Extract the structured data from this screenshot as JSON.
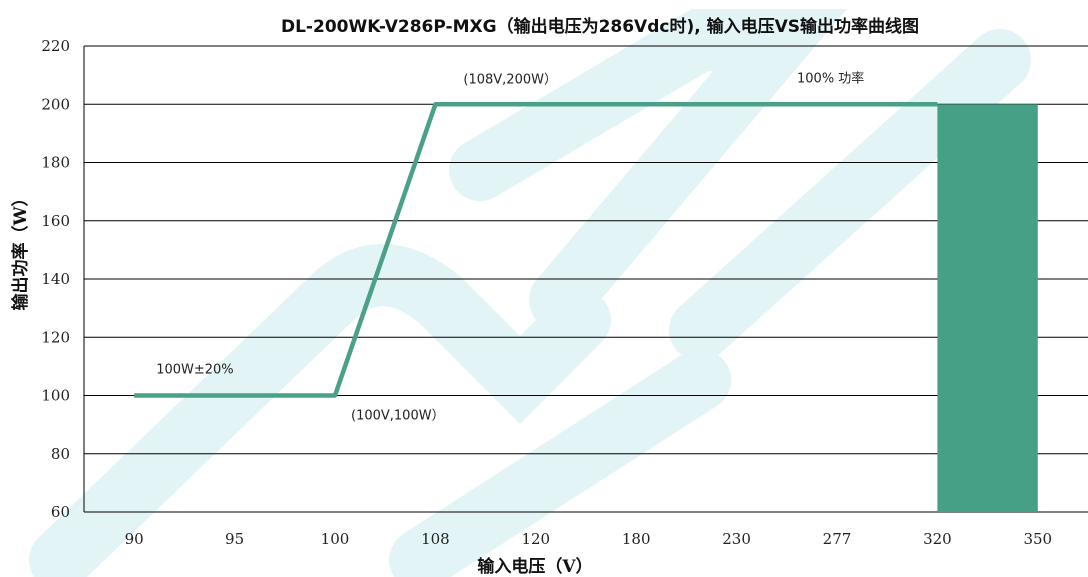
{
  "chart_data": {
    "type": "line",
    "title": "DL-200WK-V286P-MXG（输出电压为286Vdc时), 输入电压VS输出功率曲线图",
    "xlabel": "输入电压（V）",
    "ylabel": "输出功率（W）",
    "categories": [
      "90",
      "95",
      "100",
      "108",
      "120",
      "180",
      "230",
      "277",
      "320",
      "350"
    ],
    "ylim": [
      60,
      220
    ],
    "yticks": [
      60,
      80,
      100,
      120,
      140,
      160,
      180,
      200,
      220
    ],
    "grid": true,
    "series": [
      {
        "values": [
          100,
          100,
          100,
          200,
          200,
          200,
          200,
          200,
          200,
          null
        ],
        "color": "#4aa088"
      }
    ],
    "bar": {
      "from_category": "320",
      "to_category": "350",
      "value": 200,
      "color": "#45a085"
    },
    "annotations": [
      {
        "text": "100W±20%",
        "x": "90",
        "y": 100
      },
      {
        "text": "(100V,100W）",
        "x": "100",
        "y": 100
      },
      {
        "text": "(108V,200W）",
        "x": "108",
        "y": 200
      },
      {
        "text": "100% 功率",
        "x": "277",
        "y": 200
      }
    ]
  },
  "colors": {
    "watermark": "#e3f4f7",
    "grid": "#000000"
  }
}
